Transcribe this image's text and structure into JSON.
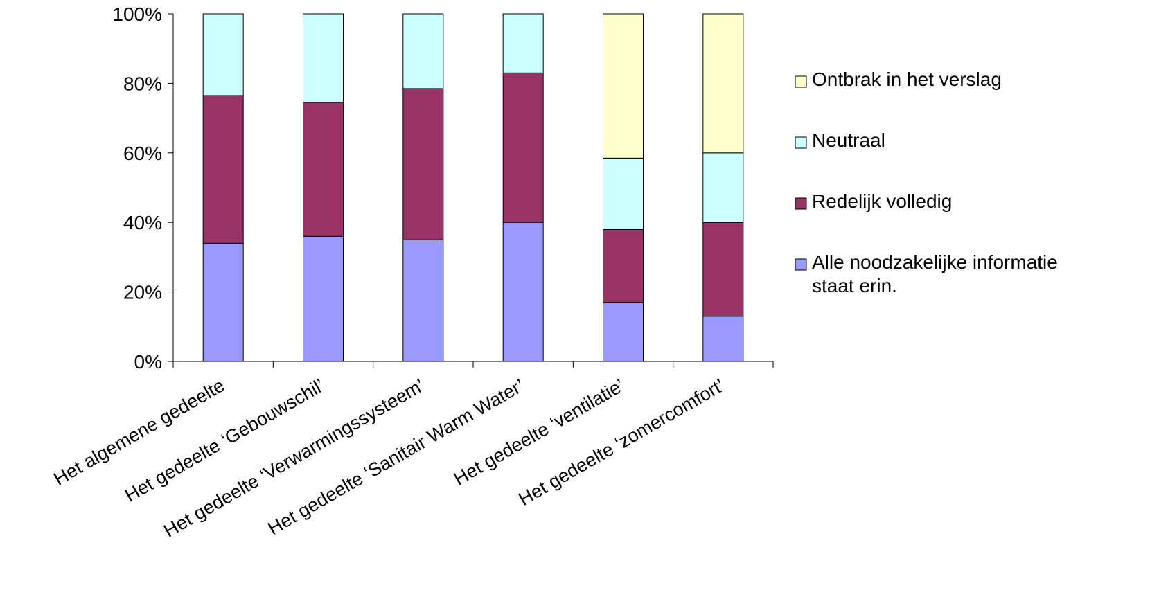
{
  "chart_data": {
    "type": "bar",
    "stacked": true,
    "percent_stacked": true,
    "title": "",
    "xlabel": "",
    "ylabel": "",
    "ylim": [
      0,
      100
    ],
    "yticks": [
      "0%",
      "20%",
      "40%",
      "60%",
      "80%",
      "100%"
    ],
    "ytick_values": [
      0,
      20,
      40,
      60,
      80,
      100
    ],
    "grid": false,
    "legend_position": "right",
    "categories": [
      "Het algemene gedeelte",
      "Het gedeelte ‘Gebouwschil’",
      "Het gedeelte ‘Verwarmingssysteem’",
      "Het gedeelte ‘Sanitair Warm Water’",
      "Het gedeelte ‘ventilatie’",
      "Het gedeelte ‘zomercomfort’"
    ],
    "series": [
      {
        "name": "Alle noodzakelijke informatie staat erin.",
        "color": "#9999ff",
        "values": [
          34,
          36,
          35,
          40,
          17,
          13
        ]
      },
      {
        "name": "Redelijk volledig",
        "color": "#993366",
        "values": [
          42.5,
          38.5,
          43.5,
          43,
          21,
          27
        ]
      },
      {
        "name": "Neutraal",
        "color": "#ccffff",
        "values": [
          23.5,
          25.5,
          21.5,
          17,
          20.5,
          20
        ]
      },
      {
        "name": "Ontbrak in het verslag",
        "color": "#ffffcc",
        "values": [
          0,
          0,
          0,
          0,
          41.5,
          40
        ]
      }
    ],
    "legend_order": [
      "Ontbrak in het verslag",
      "Neutraal",
      "Redelijk volledig",
      "Alle noodzakelijke informatie staat erin."
    ]
  }
}
